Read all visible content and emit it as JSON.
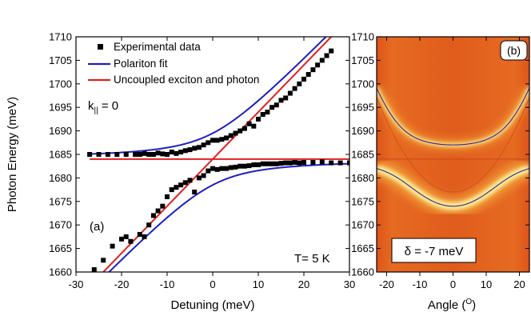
{
  "chart_data": [
    {
      "type": "scatter",
      "panel_label": "(a)",
      "xlabel": "Detuning (meV)",
      "ylabel": "Photon Energy (meV)",
      "xlim": [
        -30,
        30
      ],
      "ylim": [
        1660,
        1710
      ],
      "xticks": [
        -30,
        -20,
        -10,
        0,
        10,
        20,
        30
      ],
      "yticks": [
        1660,
        1665,
        1670,
        1675,
        1680,
        1685,
        1690,
        1695,
        1700,
        1705,
        1710
      ],
      "annotations": {
        "k_main": "k",
        "k_sub": "||",
        "k_eq": " = 0",
        "temperature": "T= 5 K"
      },
      "legend": {
        "position": "top-left",
        "entries": [
          {
            "label": "Experimental data",
            "color": "#000000",
            "kind": "square"
          },
          {
            "label": "Polariton fit",
            "color": "#1f1fbf",
            "kind": "line"
          },
          {
            "label": "Uncoupled exciton and photon",
            "color": "#e02020",
            "kind": "line"
          }
        ]
      },
      "model": {
        "exciton_energy": 1684,
        "photon_offset": 1684,
        "rabi_splitting": 5.5
      },
      "series": [
        {
          "name": "Experimental data",
          "branch": "upper",
          "points": [
            [
              -27,
              1685
            ],
            [
              -25,
              1685
            ],
            [
              -23,
              1685
            ],
            [
              -21,
              1685
            ],
            [
              -19,
              1685
            ],
            [
              -17,
              1685
            ],
            [
              -16,
              1685
            ],
            [
              -15,
              1685.2
            ],
            [
              -14,
              1685
            ],
            [
              -13,
              1685
            ],
            [
              -12,
              1685.3
            ],
            [
              -11,
              1685.1
            ],
            [
              -10,
              1685
            ],
            [
              -9,
              1685.5
            ],
            [
              -8,
              1685.2
            ],
            [
              -7,
              1685.5
            ],
            [
              -6,
              1685.8
            ],
            [
              -5,
              1686
            ],
            [
              -4,
              1686.3
            ],
            [
              -3,
              1686.5
            ],
            [
              -2,
              1687
            ],
            [
              -1,
              1687.5
            ],
            [
              0,
              1688
            ],
            [
              1,
              1688
            ],
            [
              2,
              1688.2
            ],
            [
              3,
              1688.5
            ],
            [
              4,
              1689
            ],
            [
              5,
              1689.5
            ],
            [
              6,
              1690
            ],
            [
              7,
              1690.5
            ],
            [
              8,
              1691.5
            ],
            [
              9,
              1691
            ],
            [
              10,
              1692.5
            ],
            [
              11,
              1693.5
            ],
            [
              12,
              1694
            ],
            [
              13,
              1695
            ],
            [
              14,
              1695.5
            ],
            [
              15,
              1696.5
            ],
            [
              16,
              1697
            ],
            [
              17,
              1698
            ],
            [
              18,
              1699
            ],
            [
              19,
              1700
            ],
            [
              20,
              1701
            ],
            [
              21,
              1702
            ],
            [
              22,
              1703
            ],
            [
              23,
              1704
            ],
            [
              24,
              1705
            ],
            [
              25,
              1706
            ],
            [
              26,
              1707
            ]
          ]
        },
        {
          "name": "Experimental data",
          "branch": "lower",
          "points": [
            [
              -26,
              1660.5
            ],
            [
              -24,
              1662.5
            ],
            [
              -22,
              1665.5
            ],
            [
              -20,
              1667
            ],
            [
              -19,
              1667.5
            ],
            [
              -18,
              1666.5
            ],
            [
              -16,
              1668
            ],
            [
              -15,
              1667.5
            ],
            [
              -14,
              1670
            ],
            [
              -13,
              1672
            ],
            [
              -12,
              1673
            ],
            [
              -11,
              1674
            ],
            [
              -10,
              1676
            ],
            [
              -9,
              1677.5
            ],
            [
              -8,
              1678
            ],
            [
              -7,
              1678.5
            ],
            [
              -6,
              1679
            ],
            [
              -5,
              1679.5
            ],
            [
              -4,
              1677
            ],
            [
              -3,
              1680
            ],
            [
              -2,
              1680.5
            ],
            [
              -1,
              1681.5
            ],
            [
              0,
              1682
            ],
            [
              1,
              1681.8
            ],
            [
              2,
              1682
            ],
            [
              3,
              1682
            ],
            [
              4,
              1682.2
            ],
            [
              5,
              1682.3
            ],
            [
              6,
              1682.5
            ],
            [
              7,
              1682.5
            ],
            [
              8,
              1682.6
            ],
            [
              9,
              1682.8
            ],
            [
              10,
              1682.8
            ],
            [
              11,
              1683
            ],
            [
              12,
              1683
            ],
            [
              13,
              1683
            ],
            [
              14,
              1683
            ],
            [
              15,
              1683.1
            ],
            [
              16,
              1683.2
            ],
            [
              17,
              1683.2
            ],
            [
              18,
              1683.3
            ],
            [
              19,
              1683.2
            ],
            [
              20,
              1683.3
            ],
            [
              22,
              1683.3
            ],
            [
              24,
              1683.4
            ],
            [
              26,
              1683.2
            ],
            [
              28,
              1683.2
            ],
            [
              30,
              1683.2
            ]
          ]
        }
      ]
    },
    {
      "type": "heatmap",
      "panel_label": "(b)",
      "xlabel_main": "Angle (",
      "xlabel_sup": "O",
      "xlabel_end": ")",
      "xlim": [
        -23,
        23
      ],
      "ylim": [
        1660,
        1710
      ],
      "xticks": [
        -20,
        -10,
        0,
        10,
        20
      ],
      "yticks": [
        1660,
        1665,
        1670,
        1675,
        1680,
        1685,
        1690,
        1695,
        1700,
        1705,
        1710
      ],
      "annotation": "δ = -7 meV",
      "model": {
        "exciton_energy": 1684,
        "photon_energy_k0": 1677,
        "curvature": 0.038,
        "rabi_splitting": 5.5
      },
      "colors": {
        "background": "#df5a1c",
        "bright": "#fff3a0",
        "mid": "#f2a438"
      }
    }
  ],
  "colors": {
    "fit": "#1f1fbf",
    "uncoupled": "#e02020",
    "data": "#000000"
  }
}
